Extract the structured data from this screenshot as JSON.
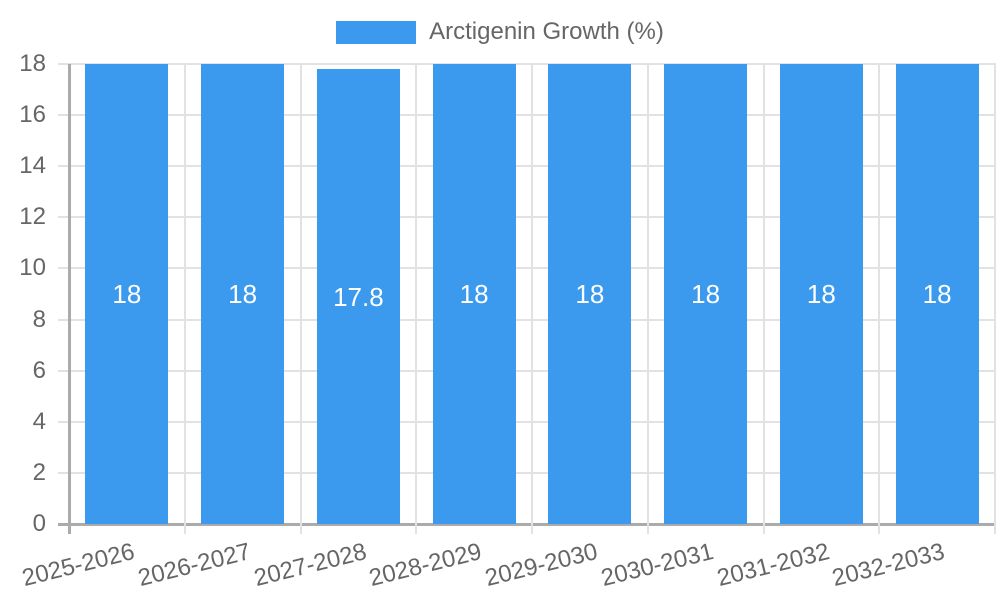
{
  "chart_data": {
    "type": "bar",
    "title": "",
    "xlabel": "",
    "ylabel": "",
    "categories": [
      "2025-2026",
      "2026-2027",
      "2027-2028",
      "2028-2029",
      "2029-2030",
      "2030-2031",
      "2031-2032",
      "2032-2033"
    ],
    "series": [
      {
        "name": "Arctigenin Growth (%)",
        "values": [
          18,
          18,
          17.8,
          18,
          18,
          18,
          18,
          18
        ]
      }
    ],
    "bar_value_labels": [
      "18",
      "18",
      "17.8",
      "18",
      "18",
      "18",
      "18",
      "18"
    ],
    "ylim": [
      0,
      18
    ],
    "yticks": [
      0,
      2,
      4,
      6,
      8,
      10,
      12,
      14,
      16,
      18
    ],
    "grid": true,
    "legend_position": "top",
    "colors": {
      "bar": "#3B9AED",
      "grid_line": "#E2E2E2",
      "axis_line": "#ABABAB",
      "tick_label": "#666666",
      "legend_label": "#666666",
      "value_label": "#FFFFFF",
      "background": "#FFFFFF"
    }
  }
}
